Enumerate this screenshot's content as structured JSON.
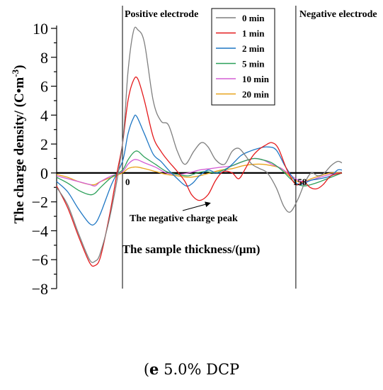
{
  "chart_data": {
    "type": "line",
    "title": "",
    "xlabel": "The sample thickness/(μm)",
    "ylabel": "The charge density/ (C•m",
    "ylabel_superscript": "-3",
    "ylabel_close": ")",
    "ylim": [
      -8,
      10
    ],
    "yticks": [
      10,
      8,
      6,
      4,
      2,
      0,
      -2,
      -4,
      -6,
      -8
    ],
    "xlim": [
      -60,
      200
    ],
    "xtick_labels": [
      {
        "x": 0,
        "label": "0"
      },
      {
        "x": 158,
        "label": "158"
      }
    ],
    "region_labels": [
      {
        "x": 0,
        "label": "Positive electrode"
      },
      {
        "x": 158,
        "label": "Negative electrode"
      }
    ],
    "annotation": {
      "text": "The negative charge peak",
      "target": [
        78,
        -1.9
      ]
    },
    "legend_position": "top-right",
    "grid": false,
    "series": [
      {
        "name": "0 min",
        "color": "#7f7f7f",
        "points": [
          [
            -60,
            -1
          ],
          [
            -50,
            -2.2
          ],
          [
            -40,
            -4.2
          ],
          [
            -30,
            -6
          ],
          [
            -25,
            -6.1
          ],
          [
            -20,
            -5.5
          ],
          [
            -10,
            -2.5
          ],
          [
            0,
            2
          ],
          [
            5,
            7
          ],
          [
            10,
            9.8
          ],
          [
            14,
            9.9
          ],
          [
            20,
            9
          ],
          [
            28,
            5
          ],
          [
            35,
            3.6
          ],
          [
            42,
            3.3
          ],
          [
            50,
            1.5
          ],
          [
            57,
            0.6
          ],
          [
            65,
            1.5
          ],
          [
            72,
            2.1
          ],
          [
            78,
            1.8
          ],
          [
            85,
            0.9
          ],
          [
            93,
            0.6
          ],
          [
            100,
            1.5
          ],
          [
            106,
            1.7
          ],
          [
            112,
            1.2
          ],
          [
            118,
            0.6
          ],
          [
            125,
            0.3
          ],
          [
            132,
            0
          ],
          [
            140,
            -1
          ],
          [
            147,
            -2.3
          ],
          [
            153,
            -2.7
          ],
          [
            160,
            -1.8
          ],
          [
            166,
            -0.7
          ],
          [
            172,
            0
          ],
          [
            178,
            -0.2
          ],
          [
            184,
            0
          ],
          [
            190,
            0.5
          ],
          [
            196,
            0.8
          ],
          [
            200,
            0.7
          ]
        ]
      },
      {
        "name": "1 min",
        "color": "#e41a1c",
        "points": [
          [
            -60,
            -0.9
          ],
          [
            -50,
            -2.4
          ],
          [
            -40,
            -4.4
          ],
          [
            -30,
            -6.2
          ],
          [
            -25,
            -6.4
          ],
          [
            -20,
            -5.8
          ],
          [
            -12,
            -3
          ],
          [
            -5,
            0
          ],
          [
            0,
            2
          ],
          [
            5,
            5
          ],
          [
            10,
            6.4
          ],
          [
            14,
            6.5
          ],
          [
            20,
            5
          ],
          [
            28,
            2.5
          ],
          [
            35,
            1.5
          ],
          [
            42,
            0.8
          ],
          [
            50,
            0.1
          ],
          [
            57,
            -0.6
          ],
          [
            63,
            -1.5
          ],
          [
            70,
            -1.9
          ],
          [
            78,
            -1.5
          ],
          [
            85,
            -0.5
          ],
          [
            92,
            0.1
          ],
          [
            100,
            0
          ],
          [
            106,
            -0.4
          ],
          [
            112,
            0.3
          ],
          [
            118,
            1.1
          ],
          [
            124,
            1.6
          ],
          [
            130,
            1.9
          ],
          [
            136,
            2.1
          ],
          [
            142,
            1.7
          ],
          [
            150,
            0.2
          ],
          [
            158,
            -0.8
          ],
          [
            165,
            -0.6
          ],
          [
            171,
            -1
          ],
          [
            177,
            -1.1
          ],
          [
            183,
            -0.8
          ],
          [
            190,
            -0.2
          ],
          [
            200,
            0
          ]
        ]
      },
      {
        "name": "2 min",
        "color": "#1f77c4",
        "points": [
          [
            -60,
            -0.6
          ],
          [
            -50,
            -1.3
          ],
          [
            -40,
            -2.5
          ],
          [
            -30,
            -3.5
          ],
          [
            -25,
            -3.5
          ],
          [
            -20,
            -2.8
          ],
          [
            -10,
            -0.8
          ],
          [
            0,
            0.8
          ],
          [
            5,
            2.7
          ],
          [
            10,
            3.8
          ],
          [
            13,
            3.9
          ],
          [
            20,
            2.7
          ],
          [
            28,
            1.3
          ],
          [
            35,
            0.8
          ],
          [
            42,
            0.2
          ],
          [
            50,
            -0.4
          ],
          [
            58,
            -0.9
          ],
          [
            64,
            -0.7
          ],
          [
            70,
            -0.2
          ],
          [
            78,
            0.2
          ],
          [
            85,
            0
          ],
          [
            92,
            0.1
          ],
          [
            100,
            0.6
          ],
          [
            108,
            1.2
          ],
          [
            116,
            1.5
          ],
          [
            124,
            1.7
          ],
          [
            132,
            1.8
          ],
          [
            140,
            1.6
          ],
          [
            148,
            0.5
          ],
          [
            155,
            -0.3
          ],
          [
            160,
            -0.8
          ],
          [
            166,
            -0.7
          ],
          [
            172,
            -0.5
          ],
          [
            180,
            -0.4
          ],
          [
            190,
            -0.2
          ],
          [
            196,
            0.2
          ],
          [
            200,
            0.2
          ]
        ]
      },
      {
        "name": "5 min",
        "color": "#2ca05a",
        "points": [
          [
            -60,
            -0.3
          ],
          [
            -50,
            -0.7
          ],
          [
            -40,
            -1.2
          ],
          [
            -30,
            -1.5
          ],
          [
            -25,
            -1.4
          ],
          [
            -20,
            -1
          ],
          [
            -10,
            -0.3
          ],
          [
            0,
            0.2
          ],
          [
            5,
            0.9
          ],
          [
            10,
            1.4
          ],
          [
            14,
            1.5
          ],
          [
            20,
            1.1
          ],
          [
            30,
            0.6
          ],
          [
            40,
            0.1
          ],
          [
            50,
            -0.1
          ],
          [
            60,
            -0.2
          ],
          [
            68,
            0
          ],
          [
            76,
            0.1
          ],
          [
            84,
            0
          ],
          [
            92,
            0.2
          ],
          [
            100,
            0.5
          ],
          [
            110,
            0.8
          ],
          [
            120,
            1
          ],
          [
            128,
            0.9
          ],
          [
            136,
            0.7
          ],
          [
            145,
            0.2
          ],
          [
            153,
            -0.4
          ],
          [
            160,
            -0.8
          ],
          [
            166,
            -0.9
          ],
          [
            172,
            -0.8
          ],
          [
            180,
            -0.6
          ],
          [
            190,
            -0.3
          ],
          [
            200,
            0
          ]
        ]
      },
      {
        "name": "10 min",
        "color": "#d45ed4",
        "points": [
          [
            -60,
            -0.2
          ],
          [
            -50,
            -0.4
          ],
          [
            -40,
            -0.6
          ],
          [
            -30,
            -0.8
          ],
          [
            -25,
            -0.9
          ],
          [
            -20,
            -0.6
          ],
          [
            -10,
            -0.2
          ],
          [
            0,
            0.1
          ],
          [
            5,
            0.6
          ],
          [
            10,
            0.9
          ],
          [
            14,
            0.9
          ],
          [
            20,
            0.7
          ],
          [
            30,
            0.4
          ],
          [
            40,
            0
          ],
          [
            50,
            -0.1
          ],
          [
            60,
            0
          ],
          [
            70,
            0.2
          ],
          [
            80,
            0.3
          ],
          [
            90,
            0.4
          ],
          [
            100,
            0.5
          ],
          [
            110,
            0.8
          ],
          [
            120,
            1
          ],
          [
            128,
            0.9
          ],
          [
            136,
            0.6
          ],
          [
            145,
            0.3
          ],
          [
            152,
            -0.1
          ],
          [
            160,
            -0.5
          ],
          [
            166,
            -0.6
          ],
          [
            172,
            -0.5
          ],
          [
            180,
            -0.3
          ],
          [
            190,
            -0.1
          ],
          [
            200,
            0
          ]
        ]
      },
      {
        "name": "20 min",
        "color": "#e8a21a",
        "points": [
          [
            -60,
            -0.1
          ],
          [
            -50,
            -0.3
          ],
          [
            -40,
            -0.6
          ],
          [
            -30,
            -0.8
          ],
          [
            -25,
            -0.8
          ],
          [
            -20,
            -0.6
          ],
          [
            -10,
            -0.3
          ],
          [
            0,
            0
          ],
          [
            5,
            0.3
          ],
          [
            10,
            0.4
          ],
          [
            14,
            0.4
          ],
          [
            20,
            0.3
          ],
          [
            30,
            0.1
          ],
          [
            40,
            -0.1
          ],
          [
            50,
            -0.2
          ],
          [
            60,
            -0.3
          ],
          [
            70,
            -0.2
          ],
          [
            80,
            0
          ],
          [
            90,
            0.2
          ],
          [
            100,
            0.3
          ],
          [
            110,
            0.5
          ],
          [
            120,
            0.6
          ],
          [
            128,
            0.6
          ],
          [
            136,
            0.5
          ],
          [
            145,
            0.3
          ],
          [
            152,
            -0.2
          ],
          [
            160,
            -0.6
          ],
          [
            166,
            -0.6
          ],
          [
            172,
            -0.4
          ],
          [
            180,
            -0.2
          ],
          [
            190,
            0
          ],
          [
            200,
            0
          ]
        ]
      }
    ]
  },
  "caption": {
    "bold": "e",
    "text": " 5.0% DCP"
  }
}
